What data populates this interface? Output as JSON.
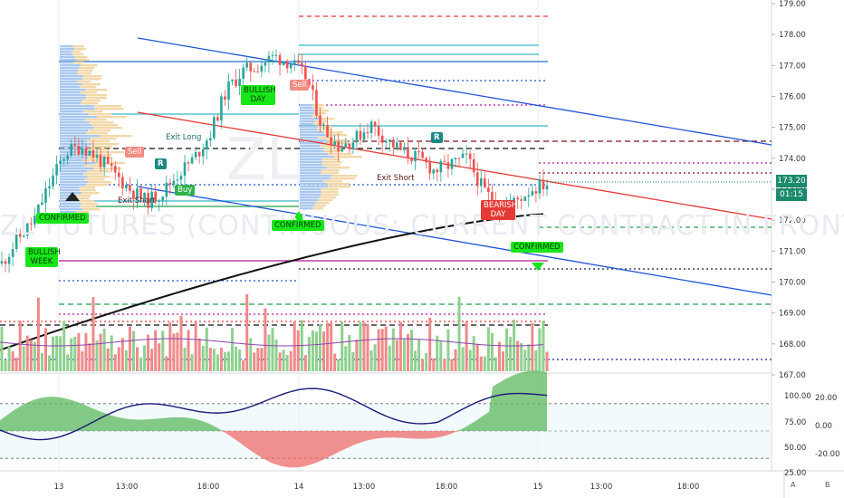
{
  "chart_data": {
    "type": "candlestick",
    "symbol_watermark": "ZL",
    "watermark_subtitle": "ZL FUTURES (CONTINUOUS: CURRENT CONTRACT IN FRONT)",
    "price_axis": {
      "min": 167.0,
      "max": 179.0,
      "ticks": [
        "179.00",
        "178.00",
        "177.00",
        "176.00",
        "175.00",
        "174.00",
        "173.00",
        "172.00",
        "171.00",
        "170.00",
        "169.00",
        "168.00",
        "167.00"
      ],
      "last_price": "173.20",
      "countdown": "01:15"
    },
    "oscillator_axis": {
      "left_ticks": [
        "100.00",
        "75.00",
        "50.00",
        "25.00"
      ],
      "right_ticks": [
        "20.00",
        "0.00",
        "-20.00"
      ]
    },
    "time_axis": {
      "ticks": [
        "13",
        "13:00",
        "18:00",
        "14",
        "13:00",
        "18:00",
        "15",
        "13:00",
        "18:00"
      ]
    },
    "markers": [
      {
        "label": "CONFIRMED",
        "color": "green"
      },
      {
        "label": "BULLISH WEEK",
        "color": "green"
      },
      {
        "label": "BULLISH DAY",
        "color": "green"
      },
      {
        "label": "CONFIRMED",
        "color": "green"
      },
      {
        "label": "CONFIRMED",
        "color": "green"
      },
      {
        "label": "BEARISH DAY",
        "color": "red"
      },
      {
        "label": "Sell",
        "color": "red"
      },
      {
        "label": "Sell",
        "color": "red"
      },
      {
        "label": "Buy",
        "color": "green"
      },
      {
        "label": "R",
        "color": "teal"
      },
      {
        "label": "R",
        "color": "teal"
      }
    ],
    "annotations": [
      "Exit Long",
      "Exit Short",
      "Exit Short"
    ],
    "bottom_buttons": [
      "A",
      "B"
    ],
    "close_series_approx": [
      170.6,
      171.4,
      172.0,
      173.2,
      174.2,
      174.4,
      174.0,
      173.5,
      173.0,
      172.6,
      172.9,
      173.5,
      174.0,
      174.8,
      176.2,
      176.8,
      177.0,
      177.3,
      177.1,
      176.6,
      175.0,
      174.4,
      174.6,
      175.1,
      174.6,
      174.2,
      174.0,
      173.6,
      173.8,
      174.0,
      173.0,
      172.4,
      172.6,
      173.0,
      173.2
    ],
    "colors": {
      "up": "#26a69a",
      "down": "#ef5350",
      "up_volume": "#8fd18f",
      "down_volume": "#f08a8a",
      "channel": "#2155d8",
      "midline": "#e53935",
      "ma": "#111111",
      "oscillator_line": "#1a1a7a"
    }
  }
}
